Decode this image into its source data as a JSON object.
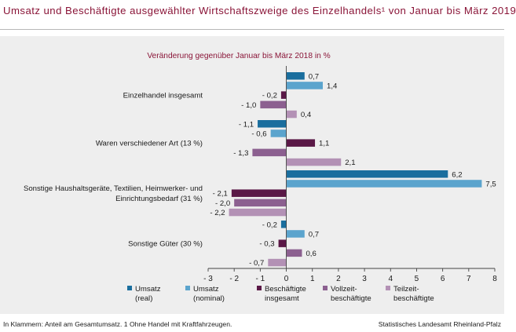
{
  "title": "Umsatz und Beschäftigte ausgewählter Wirtschaftszweige des Einzelhandels¹ von Januar bis März 2019",
  "footer": {
    "note": "In Klammern: Anteil am Gesamtumsatz. 1 Ohne Handel mit Kraftfahrzeugen.",
    "source": "Statistisches Landesamt Rheinland-Pfalz"
  },
  "chart_data": {
    "type": "bar",
    "orientation": "horizontal",
    "subtitle": "Veränderung gegenüber Januar bis März 2018 in %",
    "categories": [
      [
        "Einzelhandel insgesamt"
      ],
      [
        "Waren verschiedener Art (13 %)"
      ],
      [
        "Sonstige Haushaltsgeräte, Textilien, Heimwerker- und",
        "Einrichtungsbedarf (31 %)"
      ],
      [
        "Sonstige Güter (30 %)"
      ]
    ],
    "series": [
      {
        "name": [
          "Umsatz",
          "(real)"
        ],
        "color": "#1a6e9e",
        "values": [
          0.7,
          -1.1,
          6.2,
          -0.2
        ]
      },
      {
        "name": [
          "Umsatz",
          "(nominal)"
        ],
        "color": "#5ba4cd",
        "values": [
          1.4,
          -0.6,
          7.5,
          0.7
        ]
      },
      {
        "name": [
          "Beschäftigte",
          "insgesamt"
        ],
        "color": "#5a1846",
        "values": [
          -0.2,
          1.1,
          -2.1,
          -0.3
        ]
      },
      {
        "name": [
          "Vollzeit-",
          "beschäftigte"
        ],
        "color": "#8c6090",
        "values": [
          -1.0,
          -1.3,
          -2.0,
          0.6
        ]
      },
      {
        "name": [
          "Teilzeit-",
          "beschäftigte"
        ],
        "color": "#b391b5",
        "values": [
          0.4,
          2.1,
          -2.2,
          -0.7
        ]
      }
    ],
    "xlim": [
      -3,
      8
    ],
    "xticks": [
      -3,
      -2,
      -1,
      0,
      1,
      2,
      3,
      4,
      5,
      6,
      7,
      8
    ],
    "grid": false,
    "legend": "bottom"
  }
}
